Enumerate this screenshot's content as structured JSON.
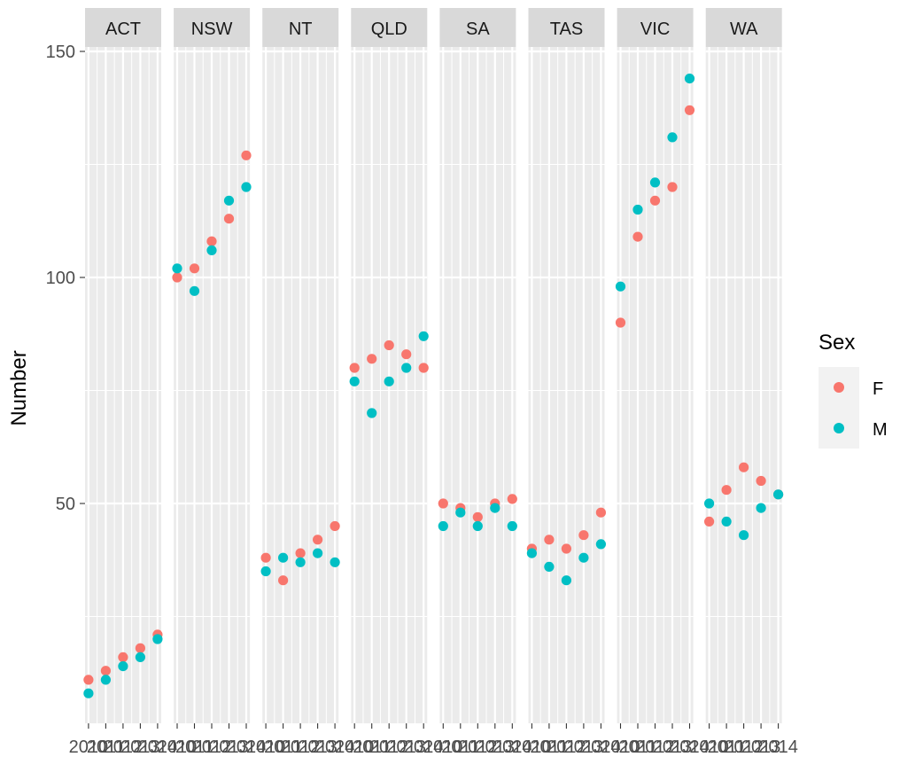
{
  "chart_data": {
    "type": "scatter",
    "facet_by": "state",
    "facets": [
      "ACT",
      "NSW",
      "NT",
      "QLD",
      "SA",
      "TAS",
      "VIC",
      "WA"
    ],
    "x": [
      2010,
      2011,
      2012,
      2013,
      2014
    ],
    "x_tick_labels": [
      "2010",
      "2011",
      "2012",
      "2013",
      "2014"
    ],
    "ylabel": "Number",
    "xlabel": "",
    "ylim": [
      3,
      155
    ],
    "y_ticks": [
      50,
      100,
      150
    ],
    "y_tick_labels": [
      "50",
      "100",
      "150"
    ],
    "grid": true,
    "legend": {
      "title": "Sex",
      "position": "right",
      "entries": [
        {
          "name": "F",
          "color": "#F8766D"
        },
        {
          "name": "M",
          "color": "#00BFC4"
        }
      ]
    },
    "series": [
      {
        "name": "F",
        "color": "#F8766D",
        "values": {
          "ACT": [
            11,
            13,
            16,
            18,
            21
          ],
          "NSW": [
            100,
            102,
            108,
            113,
            127
          ],
          "NT": [
            38,
            33,
            39,
            42,
            45
          ],
          "QLD": [
            80,
            82,
            85,
            83,
            80
          ],
          "SA": [
            50,
            49,
            47,
            50,
            51
          ],
          "TAS": [
            40,
            42,
            40,
            43,
            48
          ],
          "VIC": [
            90,
            109,
            117,
            120,
            137
          ],
          "WA": [
            46,
            53,
            58,
            55,
            52
          ]
        }
      },
      {
        "name": "M",
        "color": "#00BFC4",
        "values": {
          "ACT": [
            8,
            11,
            14,
            16,
            20
          ],
          "NSW": [
            102,
            97,
            106,
            117,
            120
          ],
          "NT": [
            35,
            38,
            37,
            39,
            37
          ],
          "QLD": [
            77,
            70,
            77,
            80,
            87
          ],
          "SA": [
            45,
            48,
            45,
            49,
            45
          ],
          "TAS": [
            39,
            36,
            33,
            38,
            41
          ],
          "VIC": [
            98,
            115,
            121,
            131,
            144
          ],
          "WA": [
            50,
            46,
            43,
            49,
            52
          ]
        }
      }
    ]
  }
}
